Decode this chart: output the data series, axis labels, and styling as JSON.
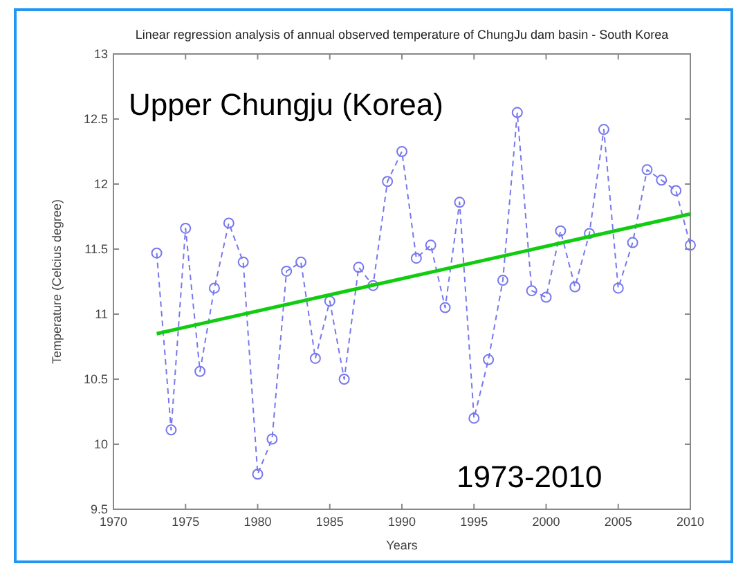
{
  "chart_data": {
    "type": "line",
    "title": "Linear regression analysis of annual observed temperature of ChungJu dam basin - South Korea",
    "xlabel": "Years",
    "ylabel": "Temperature (Celcius degree)",
    "x": [
      1973,
      1974,
      1975,
      1976,
      1977,
      1978,
      1979,
      1980,
      1981,
      1982,
      1983,
      1984,
      1985,
      1986,
      1987,
      1988,
      1989,
      1990,
      1991,
      1992,
      1993,
      1994,
      1995,
      1996,
      1997,
      1998,
      1999,
      2000,
      2001,
      2002,
      2003,
      2004,
      2005,
      2006,
      2007,
      2008,
      2009,
      2010
    ],
    "series": [
      {
        "color": "#7777ee",
        "marker": "circle",
        "line_style": "dashed",
        "values": [
          11.47,
          10.11,
          11.66,
          10.56,
          11.2,
          11.7,
          11.4,
          9.77,
          10.04,
          11.33,
          11.4,
          10.66,
          11.1,
          10.5,
          11.36,
          11.22,
          12.02,
          12.25,
          11.43,
          11.53,
          11.05,
          11.86,
          10.2,
          10.65,
          11.26,
          12.55,
          11.18,
          11.13,
          11.64,
          11.21,
          11.62,
          12.42,
          11.2,
          11.55,
          12.11,
          12.03,
          11.95,
          11.53
        ]
      },
      {
        "type": "line",
        "color": "#11cc11",
        "marker": "none",
        "line_style": "solid",
        "x": [
          1973,
          2010
        ],
        "values": [
          10.85,
          11.77
        ]
      }
    ],
    "xlim": [
      1970,
      2010
    ],
    "xticks": [
      1970,
      1975,
      1980,
      1985,
      1990,
      1995,
      2000,
      2005,
      2010
    ],
    "ylim": [
      9.5,
      13
    ],
    "yticks": [
      9.5,
      10,
      10.5,
      11,
      11.5,
      12,
      12.5,
      13
    ],
    "grid": false,
    "annotations": [
      {
        "text": "Upper Chungju (Korea)"
      },
      {
        "text": "1973-2010"
      }
    ]
  }
}
